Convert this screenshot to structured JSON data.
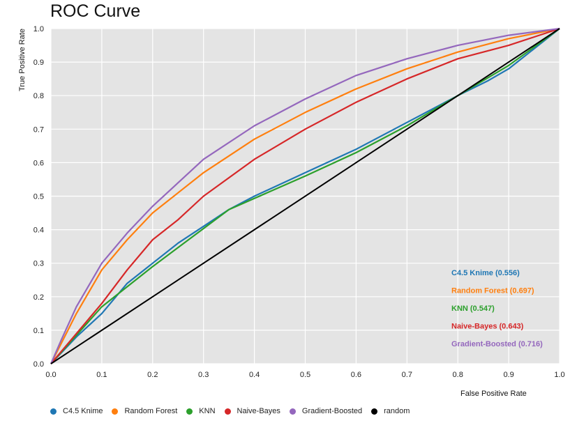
{
  "chart_data": {
    "type": "line",
    "title": "ROC Curve",
    "xlabel": "False Positive Rate",
    "ylabel": "True Positive Rate",
    "xlim": [
      0,
      1
    ],
    "ylim": [
      0,
      1
    ],
    "x_ticks": [
      "0.0",
      "0.1",
      "0.2",
      "0.3",
      "0.4",
      "0.5",
      "0.6",
      "0.7",
      "0.8",
      "0.9",
      "1.0"
    ],
    "y_ticks": [
      "0.0",
      "0.1",
      "0.2",
      "0.3",
      "0.4",
      "0.5",
      "0.6",
      "0.7",
      "0.8",
      "0.9",
      "1.0"
    ],
    "grid": true,
    "background": "#e4e4e4",
    "legend_position": "bottom",
    "series": [
      {
        "name": "C4.5 Knime",
        "color": "#1f77b4",
        "auc_label": "C4.5 Knime (0.556)",
        "x": [
          0,
          0.05,
          0.1,
          0.15,
          0.2,
          0.25,
          0.3,
          0.35,
          0.4,
          0.5,
          0.6,
          0.7,
          0.8,
          0.86,
          0.9,
          1.0
        ],
        "y": [
          0,
          0.08,
          0.15,
          0.24,
          0.3,
          0.36,
          0.41,
          0.46,
          0.5,
          0.57,
          0.64,
          0.72,
          0.8,
          0.845,
          0.88,
          1.0
        ]
      },
      {
        "name": "Random Forest",
        "color": "#ff7f0e",
        "auc_label": "Random Forest (0.697)",
        "x": [
          0,
          0.02,
          0.05,
          0.1,
          0.15,
          0.2,
          0.3,
          0.4,
          0.5,
          0.6,
          0.7,
          0.8,
          0.9,
          1.0
        ],
        "y": [
          0,
          0.06,
          0.15,
          0.28,
          0.37,
          0.45,
          0.57,
          0.67,
          0.75,
          0.82,
          0.88,
          0.93,
          0.97,
          1.0
        ]
      },
      {
        "name": "KNN",
        "color": "#2ca02c",
        "auc_label": "KNN (0.547)",
        "x": [
          0,
          0.1,
          0.2,
          0.35,
          0.5,
          0.6,
          0.7,
          0.8,
          0.9,
          1.0
        ],
        "y": [
          0,
          0.17,
          0.29,
          0.46,
          0.56,
          0.63,
          0.71,
          0.8,
          0.89,
          1.0
        ]
      },
      {
        "name": "Naive-Bayes",
        "color": "#d62728",
        "auc_label": "Naive-Bayes (0.643)",
        "x": [
          0,
          0.05,
          0.1,
          0.15,
          0.2,
          0.25,
          0.3,
          0.4,
          0.5,
          0.6,
          0.7,
          0.8,
          0.9,
          1.0
        ],
        "y": [
          0,
          0.09,
          0.18,
          0.28,
          0.37,
          0.43,
          0.5,
          0.61,
          0.7,
          0.78,
          0.85,
          0.91,
          0.95,
          1.0
        ]
      },
      {
        "name": "Gradient-Boosted",
        "color": "#9467bd",
        "auc_label": "Gradient-Boosted (0.716)",
        "x": [
          0,
          0.02,
          0.05,
          0.1,
          0.15,
          0.2,
          0.3,
          0.4,
          0.5,
          0.6,
          0.7,
          0.8,
          0.9,
          1.0
        ],
        "y": [
          0,
          0.07,
          0.17,
          0.3,
          0.39,
          0.47,
          0.61,
          0.71,
          0.79,
          0.86,
          0.91,
          0.95,
          0.98,
          1.0
        ]
      },
      {
        "name": "random",
        "color": "#000000",
        "x": [
          0,
          1.0
        ],
        "y": [
          0,
          1.0
        ]
      }
    ]
  }
}
